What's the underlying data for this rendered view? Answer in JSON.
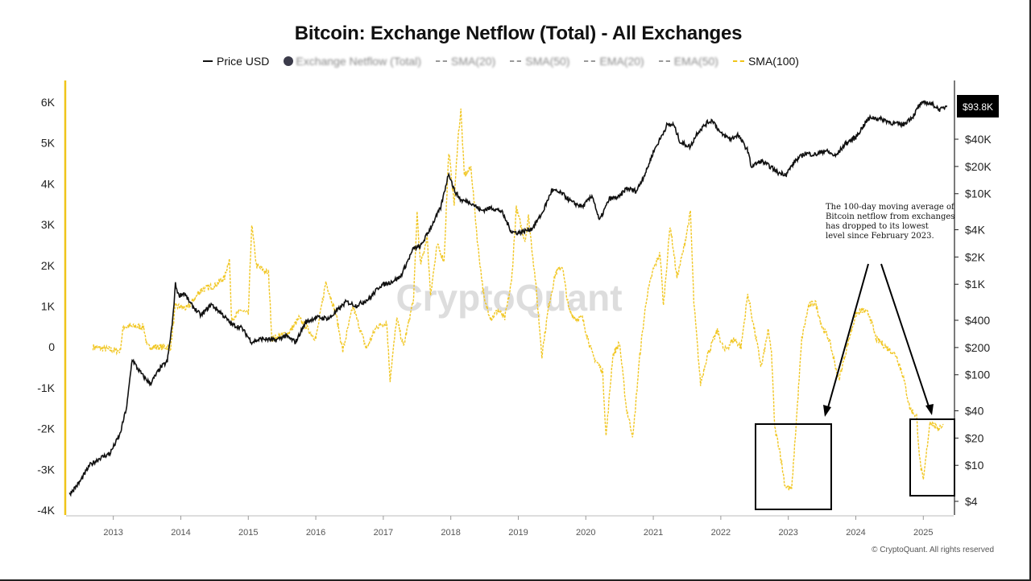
{
  "title": "Bitcoin: Exchange Netflow (Total) - All Exchanges",
  "legend": {
    "items": [
      {
        "label": "Price USD",
        "kind": "line"
      },
      {
        "label": "Exchange Netflow (Total)",
        "kind": "dot",
        "blurred": true
      },
      {
        "label": "SMA(20)",
        "kind": "dash",
        "blurred": true
      },
      {
        "label": "SMA(50)",
        "kind": "dash",
        "blurred": true
      },
      {
        "label": "EMA(20)",
        "kind": "dash",
        "blurred": true
      },
      {
        "label": "EMA(50)",
        "kind": "dash",
        "blurred": true
      },
      {
        "label": "SMA(100)",
        "kind": "dash-yellow",
        "blurred": false
      }
    ]
  },
  "price_badge": "$93.8K",
  "watermark": "CryptoQuant",
  "annotation": "The 100-day moving average of Bitcoin netflow from exchanges has dropped to its lowest level since February 2023.",
  "copyright": "© CryptoQuant. All rights reserved",
  "colors": {
    "price": "#111111",
    "sma": "#f0c419",
    "axis_accent": "#f0c419",
    "badge_bg": "#000000",
    "badge_text": "#ffffff"
  },
  "chart_data": {
    "type": "line",
    "title": "Bitcoin: Exchange Netflow (Total) - All Exchanges",
    "x_ticks": [
      "2013",
      "2014",
      "2015",
      "2016",
      "2017",
      "2018",
      "2019",
      "2020",
      "2021",
      "2022",
      "2023",
      "2024",
      "2025"
    ],
    "x_range": [
      2012.3,
      2025.45
    ],
    "left_axis": {
      "ticks": [
        "6K",
        "5K",
        "4K",
        "3K",
        "2K",
        "1K",
        "0",
        "-1K",
        "-2K",
        "-3K",
        "-4K"
      ],
      "range": [
        -4000,
        6000
      ]
    },
    "right_axis": {
      "scale": "log",
      "ticks": [
        "$40K",
        "$20K",
        "$10K",
        "$4K",
        "$2K",
        "$1K",
        "$400",
        "$200",
        "$100",
        "$40",
        "$20",
        "$10",
        "$4"
      ]
    },
    "series": [
      {
        "name": "Price USD",
        "axis": "right",
        "points": [
          [
            2012.35,
            4.8
          ],
          [
            2012.5,
            6.5
          ],
          [
            2012.65,
            10
          ],
          [
            2012.8,
            12
          ],
          [
            2012.95,
            13.5
          ],
          [
            2013.1,
            22
          ],
          [
            2013.2,
            45
          ],
          [
            2013.28,
            150
          ],
          [
            2013.35,
            120
          ],
          [
            2013.45,
            95
          ],
          [
            2013.55,
            80
          ],
          [
            2013.7,
            120
          ],
          [
            2013.8,
            140
          ],
          [
            2013.88,
            400
          ],
          [
            2013.92,
            1000
          ],
          [
            2013.97,
            750
          ],
          [
            2014.05,
            800
          ],
          [
            2014.15,
            600
          ],
          [
            2014.3,
            450
          ],
          [
            2014.45,
            600
          ],
          [
            2014.6,
            480
          ],
          [
            2014.75,
            360
          ],
          [
            2014.9,
            330
          ],
          [
            2015.05,
            230
          ],
          [
            2015.2,
            250
          ],
          [
            2015.4,
            240
          ],
          [
            2015.55,
            270
          ],
          [
            2015.7,
            230
          ],
          [
            2015.85,
            380
          ],
          [
            2016.0,
            430
          ],
          [
            2016.2,
            420
          ],
          [
            2016.45,
            640
          ],
          [
            2016.6,
            580
          ],
          [
            2016.8,
            700
          ],
          [
            2016.95,
            960
          ],
          [
            2017.1,
            1050
          ],
          [
            2017.25,
            1200
          ],
          [
            2017.45,
            2500
          ],
          [
            2017.55,
            2600
          ],
          [
            2017.7,
            4200
          ],
          [
            2017.85,
            7000
          ],
          [
            2017.97,
            17000
          ],
          [
            2018.05,
            11000
          ],
          [
            2018.15,
            8500
          ],
          [
            2018.3,
            8000
          ],
          [
            2018.45,
            6500
          ],
          [
            2018.6,
            7000
          ],
          [
            2018.75,
            6400
          ],
          [
            2018.9,
            3800
          ],
          [
            2019.0,
            3700
          ],
          [
            2019.2,
            4100
          ],
          [
            2019.35,
            6000
          ],
          [
            2019.5,
            11000
          ],
          [
            2019.65,
            10000
          ],
          [
            2019.8,
            8000
          ],
          [
            2019.95,
            7200
          ],
          [
            2020.1,
            9500
          ],
          [
            2020.2,
            5000
          ],
          [
            2020.35,
            8800
          ],
          [
            2020.5,
            9200
          ],
          [
            2020.6,
            11500
          ],
          [
            2020.75,
            10700
          ],
          [
            2020.9,
            18000
          ],
          [
            2021.0,
            29000
          ],
          [
            2021.1,
            40000
          ],
          [
            2021.2,
            57000
          ],
          [
            2021.3,
            58000
          ],
          [
            2021.4,
            37000
          ],
          [
            2021.55,
            33000
          ],
          [
            2021.65,
            47000
          ],
          [
            2021.8,
            61000
          ],
          [
            2021.88,
            65000
          ],
          [
            2022.0,
            46000
          ],
          [
            2022.15,
            40000
          ],
          [
            2022.25,
            45000
          ],
          [
            2022.4,
            30000
          ],
          [
            2022.45,
            20000
          ],
          [
            2022.6,
            23000
          ],
          [
            2022.75,
            19500
          ],
          [
            2022.85,
            17000
          ],
          [
            2022.97,
            16500
          ],
          [
            2023.1,
            23000
          ],
          [
            2023.25,
            28000
          ],
          [
            2023.4,
            27000
          ],
          [
            2023.55,
            30000
          ],
          [
            2023.7,
            26000
          ],
          [
            2023.85,
            36000
          ],
          [
            2024.0,
            42000
          ],
          [
            2024.15,
            62000
          ],
          [
            2024.22,
            70000
          ],
          [
            2024.4,
            66000
          ],
          [
            2024.55,
            60000
          ],
          [
            2024.7,
            58000
          ],
          [
            2024.85,
            72000
          ],
          [
            2024.95,
            97000
          ],
          [
            2025.05,
            102000
          ],
          [
            2025.15,
            96000
          ],
          [
            2025.25,
            84000
          ],
          [
            2025.35,
            94000
          ]
        ]
      },
      {
        "name": "SMA(100)",
        "axis": "left",
        "points": [
          [
            2012.7,
            0
          ],
          [
            2012.9,
            -50
          ],
          [
            2013.1,
            -100
          ],
          [
            2013.15,
            500
          ],
          [
            2013.45,
            500
          ],
          [
            2013.5,
            0
          ],
          [
            2013.85,
            0
          ],
          [
            2013.92,
            1000
          ],
          [
            2014.1,
            950
          ],
          [
            2014.3,
            1400
          ],
          [
            2014.5,
            1500
          ],
          [
            2014.65,
            1700
          ],
          [
            2014.72,
            2200
          ],
          [
            2014.75,
            700
          ],
          [
            2014.9,
            900
          ],
          [
            2015.0,
            800
          ],
          [
            2015.05,
            3000
          ],
          [
            2015.12,
            2000
          ],
          [
            2015.3,
            1800
          ],
          [
            2015.35,
            200
          ],
          [
            2015.6,
            350
          ],
          [
            2015.75,
            700
          ],
          [
            2015.9,
            400
          ],
          [
            2016.0,
            200
          ],
          [
            2016.15,
            1600
          ],
          [
            2016.3,
            800
          ],
          [
            2016.4,
            -100
          ],
          [
            2016.55,
            1000
          ],
          [
            2016.75,
            -50
          ],
          [
            2016.9,
            500
          ],
          [
            2017.05,
            600
          ],
          [
            2017.1,
            -800
          ],
          [
            2017.2,
            700
          ],
          [
            2017.3,
            0
          ],
          [
            2017.45,
            1200
          ],
          [
            2017.5,
            3300
          ],
          [
            2017.55,
            2000
          ],
          [
            2017.65,
            2700
          ],
          [
            2017.7,
            1300
          ],
          [
            2017.8,
            2500
          ],
          [
            2017.9,
            2100
          ],
          [
            2017.97,
            4800
          ],
          [
            2018.05,
            3500
          ],
          [
            2018.1,
            5000
          ],
          [
            2018.15,
            5800
          ],
          [
            2018.2,
            4200
          ],
          [
            2018.3,
            4400
          ],
          [
            2018.4,
            2500
          ],
          [
            2018.5,
            1100
          ],
          [
            2018.6,
            700
          ],
          [
            2018.7,
            900
          ],
          [
            2018.8,
            700
          ],
          [
            2018.9,
            1600
          ],
          [
            2018.97,
            3400
          ],
          [
            2019.1,
            2600
          ],
          [
            2019.15,
            3200
          ],
          [
            2019.25,
            1700
          ],
          [
            2019.35,
            -200
          ],
          [
            2019.45,
            1000
          ],
          [
            2019.55,
            1800
          ],
          [
            2019.65,
            2000
          ],
          [
            2019.75,
            900
          ],
          [
            2019.85,
            700
          ],
          [
            2019.95,
            700
          ],
          [
            2020.1,
            -200
          ],
          [
            2020.25,
            -600
          ],
          [
            2020.3,
            -2200
          ],
          [
            2020.4,
            -200
          ],
          [
            2020.5,
            100
          ],
          [
            2020.6,
            -1500
          ],
          [
            2020.7,
            -2200
          ],
          [
            2020.8,
            -200
          ],
          [
            2020.9,
            1200
          ],
          [
            2021.0,
            1900
          ],
          [
            2021.1,
            2300
          ],
          [
            2021.15,
            1000
          ],
          [
            2021.25,
            3000
          ],
          [
            2021.35,
            1700
          ],
          [
            2021.45,
            2400
          ],
          [
            2021.55,
            3300
          ],
          [
            2021.6,
            1100
          ],
          [
            2021.7,
            -900
          ],
          [
            2021.8,
            -200
          ],
          [
            2021.95,
            400
          ],
          [
            2022.05,
            -100
          ],
          [
            2022.2,
            200
          ],
          [
            2022.3,
            0
          ],
          [
            2022.4,
            1300
          ],
          [
            2022.5,
            400
          ],
          [
            2022.6,
            -500
          ],
          [
            2022.7,
            400
          ],
          [
            2022.75,
            -100
          ],
          [
            2022.8,
            -2000
          ],
          [
            2022.87,
            -2500
          ],
          [
            2022.95,
            -3400
          ],
          [
            2023.05,
            -3500
          ],
          [
            2023.12,
            -1800
          ],
          [
            2023.2,
            200
          ],
          [
            2023.3,
            1000
          ],
          [
            2023.4,
            1100
          ],
          [
            2023.5,
            500
          ],
          [
            2023.6,
            200
          ],
          [
            2023.75,
            -800
          ],
          [
            2023.9,
            200
          ],
          [
            2024.0,
            800
          ],
          [
            2024.1,
            900
          ],
          [
            2024.2,
            800
          ],
          [
            2024.3,
            200
          ],
          [
            2024.45,
            0
          ],
          [
            2024.6,
            -200
          ],
          [
            2024.7,
            -700
          ],
          [
            2024.8,
            -1500
          ],
          [
            2024.9,
            -1700
          ],
          [
            2024.95,
            -2800
          ],
          [
            2025.0,
            -3300
          ],
          [
            2025.1,
            -1800
          ],
          [
            2025.2,
            -2000
          ],
          [
            2025.3,
            -1900
          ]
        ]
      }
    ]
  }
}
